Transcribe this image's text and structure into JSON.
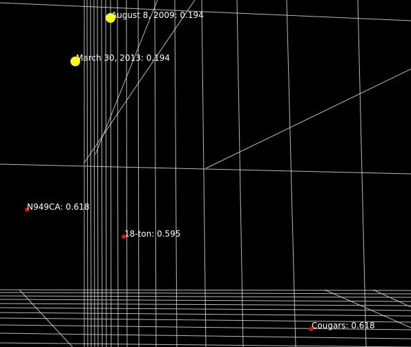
{
  "colors": {
    "background": "#000000",
    "grid_line": "#d9d9d9",
    "label_text": "#ffffff",
    "highlight_point": "#ffff00",
    "regular_point": "#ff0000"
  },
  "points": [
    {
      "label": "August 8, 2009: 0.194",
      "kind": "highlight"
    },
    {
      "label": "March 30, 2013: 0.194",
      "kind": "highlight"
    },
    {
      "label": "N949CA: 0.618",
      "kind": "regular"
    },
    {
      "label": "18-ton: 0.595",
      "kind": "regular"
    },
    {
      "label": "Cougars: 0.618",
      "kind": "regular"
    }
  ]
}
